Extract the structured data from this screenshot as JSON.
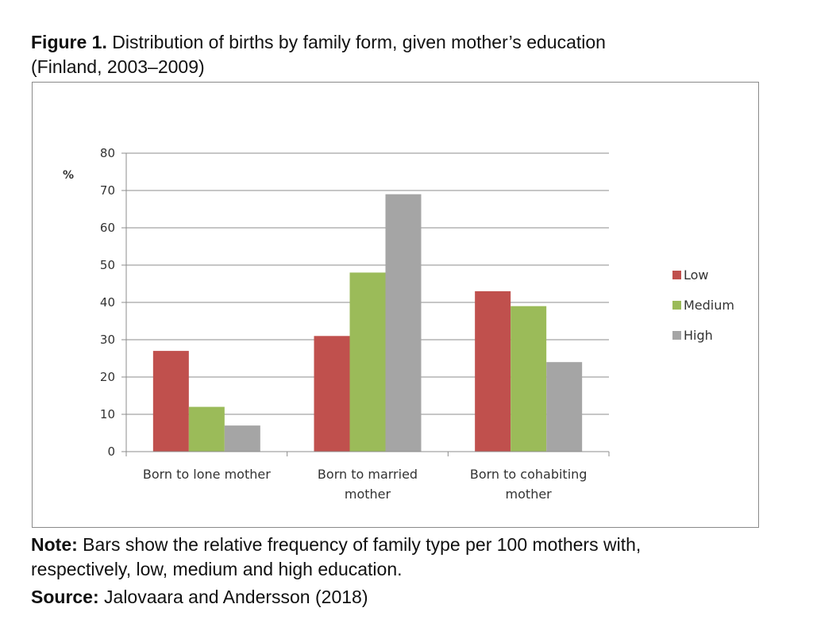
{
  "figure": {
    "label": "Figure 1.",
    "title": "Distribution of births by family form, given mother’s education",
    "subtitle": "(Finland, 2003–2009)"
  },
  "note": {
    "label": "Note:",
    "line1": "Bars show the relative frequency of family type per 100 mothers with,",
    "line2": "respectively, low, medium and high education."
  },
  "source": {
    "label": "Source:",
    "text": "Jalovaara and Andersson (2018)"
  },
  "chart_data": {
    "type": "bar",
    "title": "",
    "xlabel": "",
    "ylabel": "%",
    "ylim": [
      0,
      80
    ],
    "yticks": [
      0,
      10,
      20,
      30,
      40,
      50,
      60,
      70,
      80
    ],
    "grid": true,
    "legend_position": "right",
    "categories": [
      [
        "Born to lone mother"
      ],
      [
        "Born to married",
        "mother"
      ],
      [
        "Born to cohabiting",
        "mother"
      ]
    ],
    "series": [
      {
        "name": "Low",
        "color": "#c0504d",
        "values": [
          27,
          31,
          43
        ]
      },
      {
        "name": "Medium",
        "color": "#9bbb59",
        "values": [
          12,
          48,
          39
        ]
      },
      {
        "name": "High",
        "color": "#a5a5a5",
        "values": [
          7,
          69,
          24
        ]
      }
    ]
  }
}
